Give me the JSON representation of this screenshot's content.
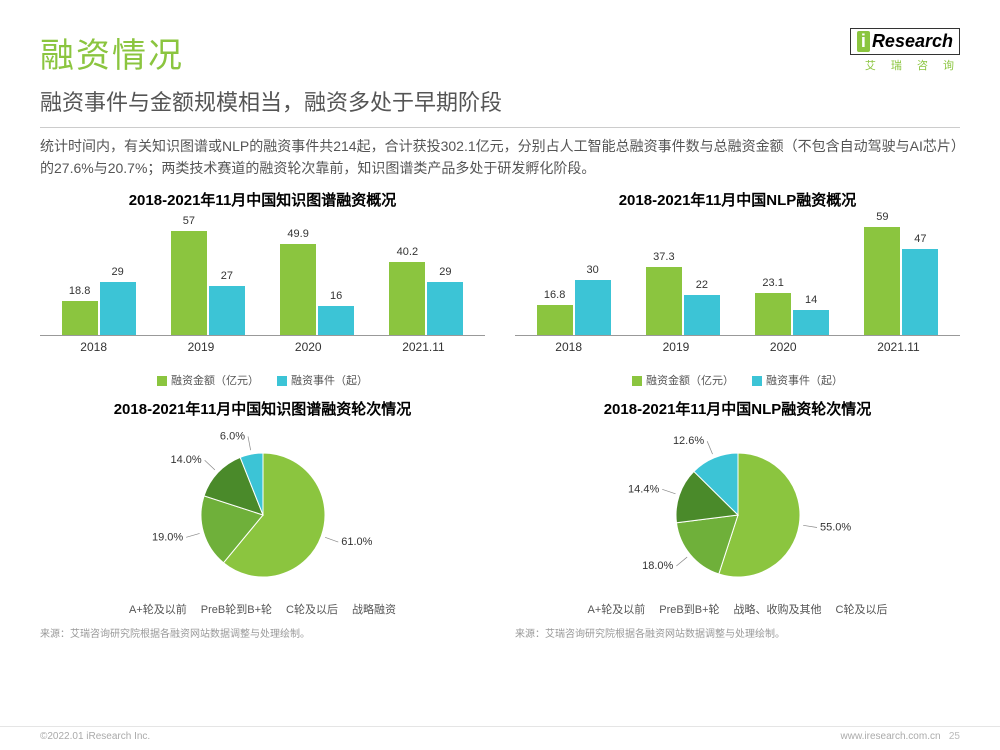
{
  "header": {
    "title": "融资情况",
    "subtitle": "融资事件与金额规模相当，融资多处于早期阶段",
    "logo_text": "Research",
    "logo_i": "i",
    "logo_sub": "艾 瑞 咨 询"
  },
  "body_text": "统计时间内，有关知识图谱或NLP的融资事件共214起，合计获投302.1亿元，分别占人工智能总融资事件数与总融资金额（不包含自动驾驶与AI芯片）的27.6%与20.7%；两类技术赛道的融资轮次靠前，知识图谱类产品多处于研发孵化阶段。",
  "colors": {
    "green": "#8bc53f",
    "cyan": "#3cc4d6",
    "darkgreen": "#4a8a2a",
    "midgreen": "#6fb03a",
    "axis": "#999999"
  },
  "bar1": {
    "title": "2018-2021年11月中国知识图谱融资概况",
    "categories": [
      "2018",
      "2019",
      "2020",
      "2021.11"
    ],
    "amount": [
      18.8,
      57.0,
      49.9,
      40.2
    ],
    "events": [
      29,
      27,
      16,
      29
    ],
    "ymax": 60,
    "legend": [
      "融资金额（亿元）",
      "融资事件（起）"
    ]
  },
  "bar2": {
    "title": "2018-2021年11月中国NLP融资概况",
    "categories": [
      "2018",
      "2019",
      "2020",
      "2021.11"
    ],
    "amount": [
      16.8,
      37.3,
      23.1,
      59.0
    ],
    "events": [
      30,
      22,
      14,
      47
    ],
    "ymax": 60,
    "legend": [
      "融资金额（亿元）",
      "融资事件（起）"
    ]
  },
  "pie1": {
    "title": "2018-2021年11月中国知识图谱融资轮次情况",
    "slices": [
      {
        "label": "A+轮及以前",
        "value": 61.0,
        "color": "#8bc53f"
      },
      {
        "label": "PreB轮到B+轮",
        "value": 19.0,
        "color": "#6fb03a"
      },
      {
        "label": "C轮及以后",
        "value": 14.0,
        "color": "#4a8a2a"
      },
      {
        "label": "战略融资",
        "value": 6.0,
        "color": "#3cc4d6"
      }
    ]
  },
  "pie2": {
    "title": "2018-2021年11月中国NLP融资轮次情况",
    "slices": [
      {
        "label": "A+轮及以前",
        "value": 55.0,
        "color": "#8bc53f"
      },
      {
        "label": "PreB到B+轮",
        "value": 18.0,
        "color": "#6fb03a"
      },
      {
        "label": "战略、收购及其他",
        "value": 14.4,
        "color": "#4a8a2a"
      },
      {
        "label": "C轮及以后",
        "value": 12.6,
        "color": "#3cc4d6"
      }
    ]
  },
  "source": "来源：艾瑞咨询研究院根据各融资网站数据调整与处理绘制。",
  "footer": {
    "left": "©2022.01 iResearch Inc.",
    "right": "www.iresearch.com.cn",
    "page": "25"
  }
}
